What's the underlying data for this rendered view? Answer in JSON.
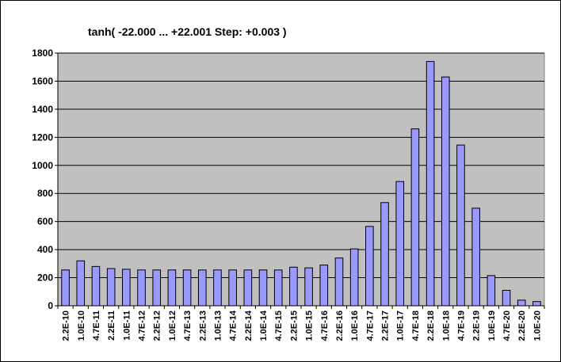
{
  "chart_data": {
    "type": "bar",
    "title": "tanh( -22.000 ... +22.001   Step: +0.003 )",
    "xlabel": "",
    "ylabel": "",
    "ylim": [
      0,
      1800
    ],
    "yticks": [
      0,
      200,
      400,
      600,
      800,
      1000,
      1200,
      1400,
      1600,
      1800
    ],
    "grid": true,
    "legend": "none",
    "colors": {
      "bar_fill": "#9999ff",
      "bar_stroke": "#000000",
      "plot_bg": "#c0c0c0",
      "grid": "#000000"
    },
    "categories": [
      "2.2E-10",
      "1.0E-10",
      "4.7E-11",
      "2.2E-11",
      "1.0E-11",
      "4.7E-12",
      "2.2E-12",
      "1.0E-12",
      "4.7E-13",
      "2.2E-13",
      "1.0E-13",
      "4.7E-14",
      "2.2E-14",
      "1.0E-14",
      "4.7E-15",
      "2.2E-15",
      "1.0E-15",
      "4.7E-16",
      "2.2E-16",
      "1.0E-16",
      "4.7E-17",
      "2.2E-17",
      "1.0E-17",
      "4.7E-18",
      "2.2E-18",
      "1.0E-18",
      "4.7E-19",
      "2.2E-19",
      "1.0E-19",
      "4.7E-20",
      "2.2E-20",
      "1.0E-20"
    ],
    "values": [
      255,
      320,
      280,
      265,
      260,
      255,
      255,
      255,
      255,
      255,
      255,
      255,
      255,
      255,
      255,
      275,
      270,
      290,
      340,
      405,
      565,
      735,
      885,
      1260,
      1740,
      1630,
      1145,
      695,
      215,
      110,
      40,
      30
    ]
  }
}
